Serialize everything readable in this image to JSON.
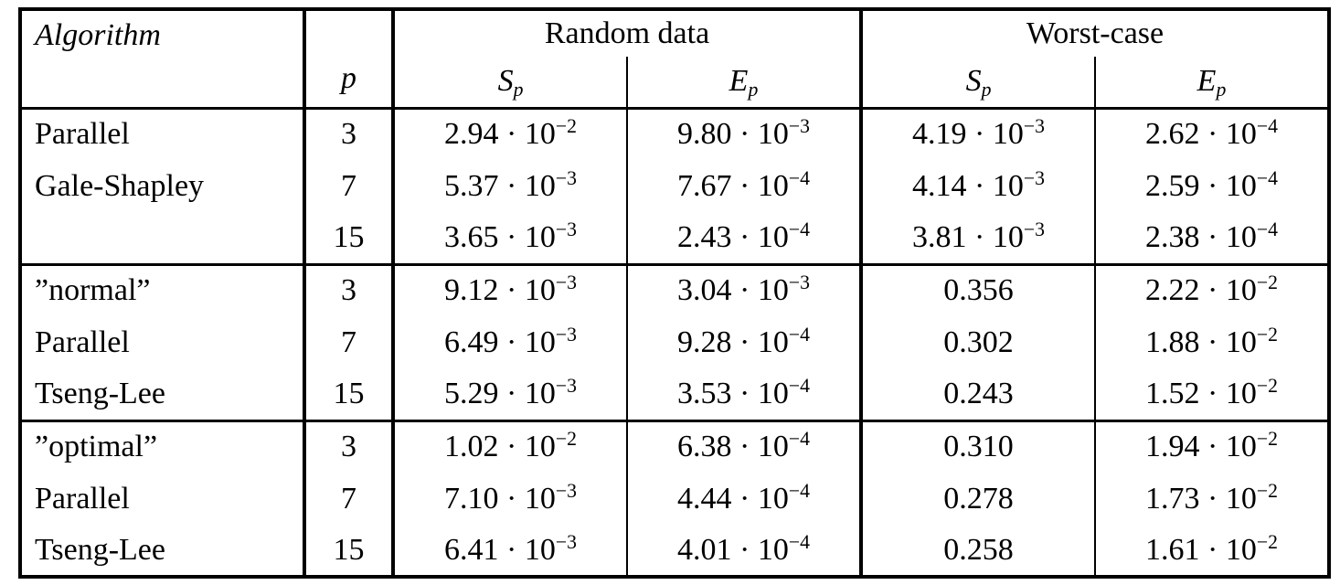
{
  "table": {
    "header": {
      "algorithm": "Algorithm",
      "p": "p",
      "groups": [
        "Random data",
        "Worst-case"
      ],
      "subheaders": [
        {
          "main": "S",
          "sub": "p"
        },
        {
          "main": "E",
          "sub": "p"
        },
        {
          "main": "S",
          "sub": "p"
        },
        {
          "main": "E",
          "sub": "p"
        }
      ]
    },
    "blocks": [
      {
        "rows": [
          {
            "algorithm": "Parallel",
            "p": "3",
            "values": [
              {
                "base": "2.94 · 10",
                "sup": "−2"
              },
              {
                "base": "9.80 · 10",
                "sup": "−3"
              },
              {
                "base": "4.19 · 10",
                "sup": "−3"
              },
              {
                "base": "2.62 · 10",
                "sup": "−4"
              }
            ]
          },
          {
            "algorithm": "Gale-Shapley",
            "p": "7",
            "values": [
              {
                "base": "5.37 · 10",
                "sup": "−3"
              },
              {
                "base": "7.67 · 10",
                "sup": "−4"
              },
              {
                "base": "4.14 · 10",
                "sup": "−3"
              },
              {
                "base": "2.59 · 10",
                "sup": "−4"
              }
            ]
          },
          {
            "algorithm": "",
            "p": "15",
            "values": [
              {
                "base": "3.65 · 10",
                "sup": "−3"
              },
              {
                "base": "2.43 · 10",
                "sup": "−4"
              },
              {
                "base": "3.81 · 10",
                "sup": "−3"
              },
              {
                "base": "2.38 · 10",
                "sup": "−4"
              }
            ]
          }
        ]
      },
      {
        "rows": [
          {
            "algorithm": "”normal”",
            "p": "3",
            "values": [
              {
                "base": "9.12 · 10",
                "sup": "−3"
              },
              {
                "base": "3.04 · 10",
                "sup": "−3"
              },
              {
                "base": "0.356",
                "sup": ""
              },
              {
                "base": "2.22 · 10",
                "sup": "−2"
              }
            ]
          },
          {
            "algorithm": "Parallel",
            "p": "7",
            "values": [
              {
                "base": "6.49 · 10",
                "sup": "−3"
              },
              {
                "base": "9.28 · 10",
                "sup": "−4"
              },
              {
                "base": "0.302",
                "sup": ""
              },
              {
                "base": "1.88 · 10",
                "sup": "−2"
              }
            ]
          },
          {
            "algorithm": "Tseng-Lee",
            "p": "15",
            "values": [
              {
                "base": "5.29 · 10",
                "sup": "−3"
              },
              {
                "base": "3.53 · 10",
                "sup": "−4"
              },
              {
                "base": "0.243",
                "sup": ""
              },
              {
                "base": "1.52 · 10",
                "sup": "−2"
              }
            ]
          }
        ]
      },
      {
        "rows": [
          {
            "algorithm": "”optimal”",
            "p": "3",
            "values": [
              {
                "base": "1.02 · 10",
                "sup": "−2"
              },
              {
                "base": "6.38 · 10",
                "sup": "−4"
              },
              {
                "base": "0.310",
                "sup": ""
              },
              {
                "base": "1.94 · 10",
                "sup": "−2"
              }
            ]
          },
          {
            "algorithm": "Parallel",
            "p": "7",
            "values": [
              {
                "base": "7.10 · 10",
                "sup": "−3"
              },
              {
                "base": "4.44 · 10",
                "sup": "−4"
              },
              {
                "base": "0.278",
                "sup": ""
              },
              {
                "base": "1.73 · 10",
                "sup": "−2"
              }
            ]
          },
          {
            "algorithm": "Tseng-Lee",
            "p": "15",
            "values": [
              {
                "base": "6.41 · 10",
                "sup": "−3"
              },
              {
                "base": "4.01 · 10",
                "sup": "−4"
              },
              {
                "base": "0.258",
                "sup": ""
              },
              {
                "base": "1.61 · 10",
                "sup": "−2"
              }
            ]
          }
        ]
      }
    ]
  }
}
